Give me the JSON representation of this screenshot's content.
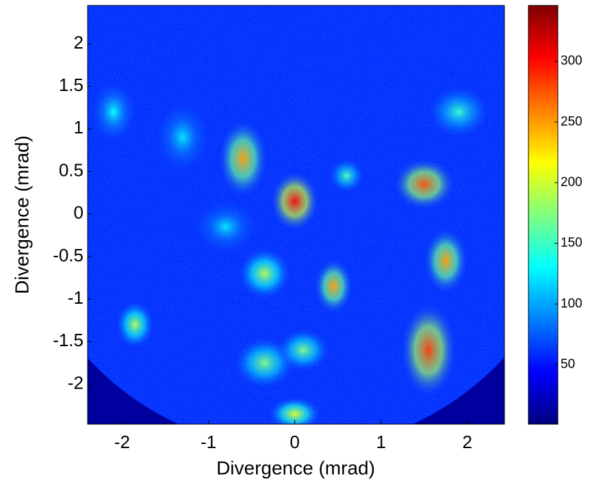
{
  "chart_data": {
    "type": "heatmap",
    "xlabel": "Divergence (mrad)",
    "ylabel": "Divergence (mrad)",
    "xlim": [
      -2.4,
      2.43
    ],
    "ylim": [
      -2.47,
      2.45
    ],
    "xticks": [
      -2,
      -1,
      0,
      1,
      2
    ],
    "yticks": [
      -2,
      -1.5,
      -1,
      -0.5,
      0,
      0.5,
      1,
      1.5,
      2
    ],
    "colormap": "jet",
    "clim": [
      1,
      346
    ],
    "colorbar_ticks": [
      50,
      100,
      150,
      200,
      250,
      300
    ]
  }
}
